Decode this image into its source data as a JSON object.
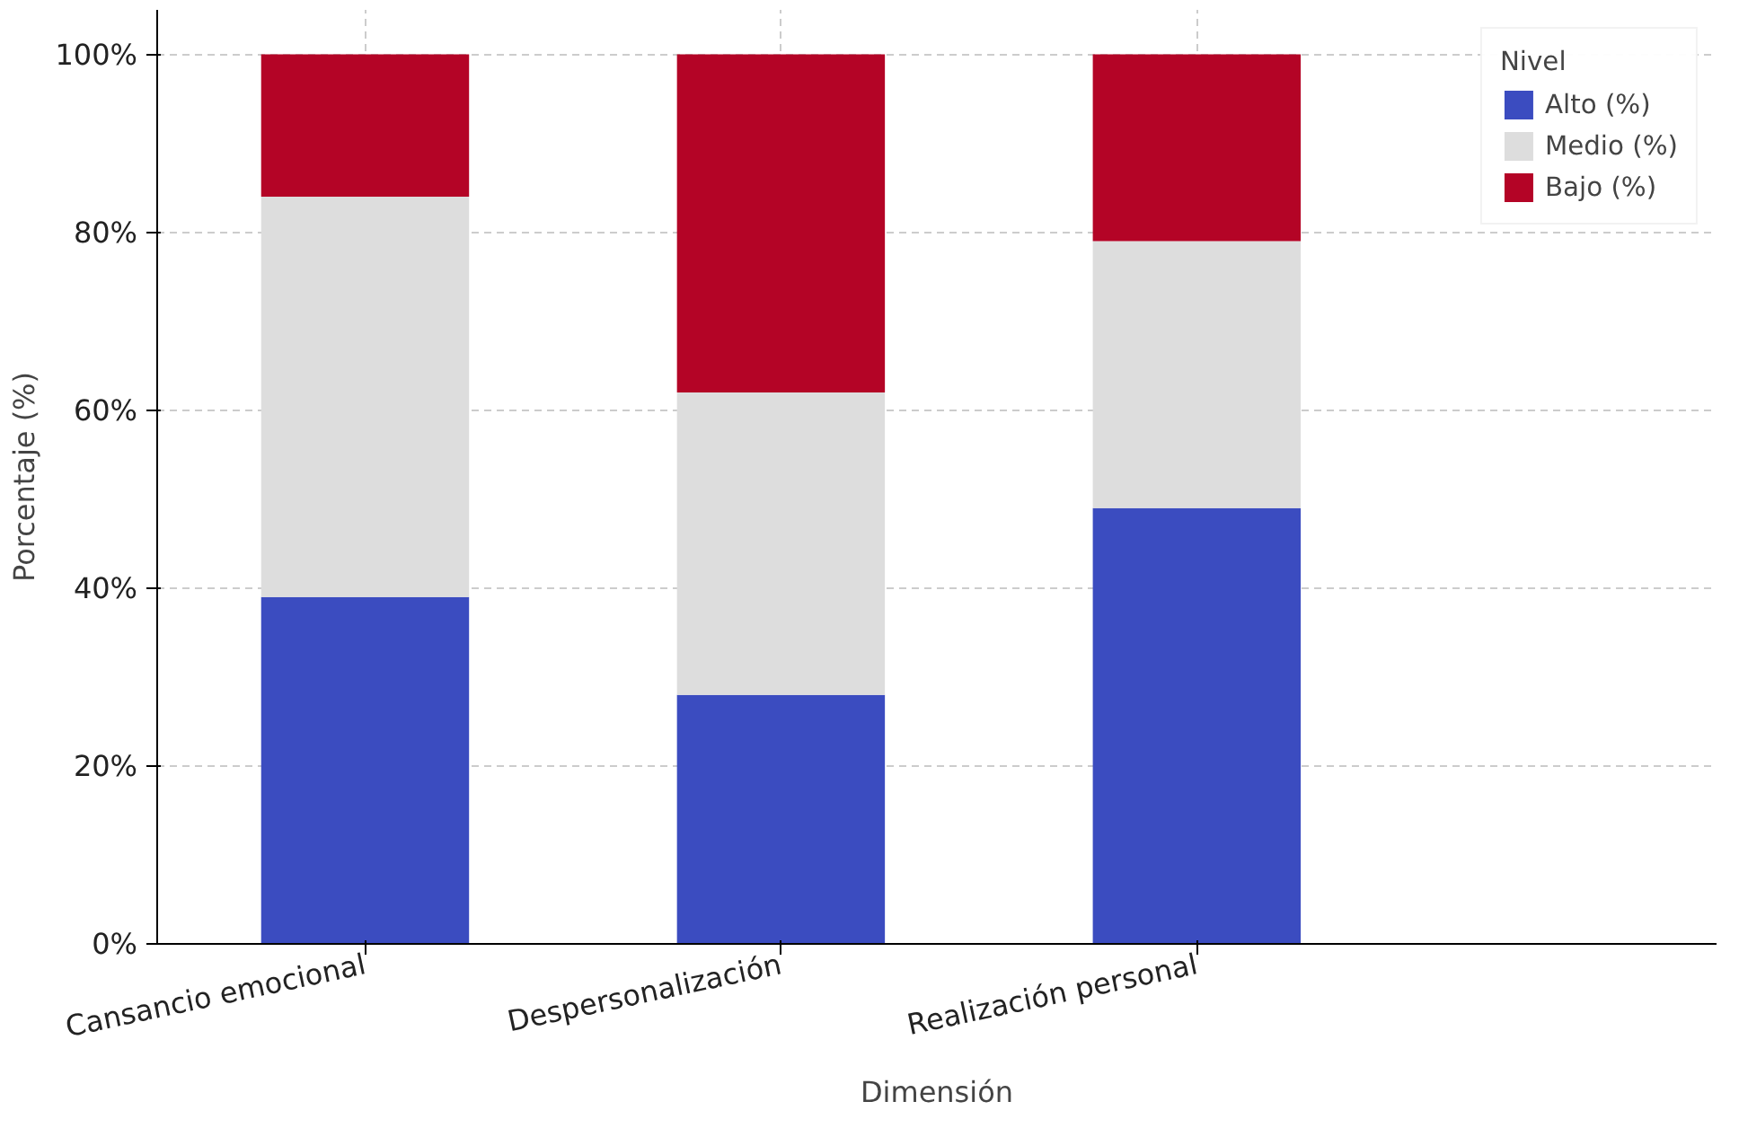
{
  "chart_data": {
    "type": "bar",
    "stacked": true,
    "xlabel": "Dimensión",
    "ylabel": "Porcentaje (%)",
    "legend_title": "Nivel",
    "categories": [
      "Cansancio emocional",
      "Despersonalización",
      "Realización personal"
    ],
    "series": [
      {
        "name": "Alto (%)",
        "color": "#3b4cc0",
        "values": [
          39,
          28,
          49
        ]
      },
      {
        "name": "Medio (%)",
        "color": "#dddddd",
        "values": [
          45,
          34,
          30
        ]
      },
      {
        "name": "Bajo (%)",
        "color": "#b40426",
        "values": [
          16,
          38,
          21
        ]
      }
    ],
    "ylim": [
      0,
      105
    ],
    "yticks": [
      {
        "value": 0,
        "label": "0%"
      },
      {
        "value": 20,
        "label": "20%"
      },
      {
        "value": 40,
        "label": "40%"
      },
      {
        "value": 60,
        "label": "60%"
      },
      {
        "value": 80,
        "label": "80%"
      },
      {
        "value": 100,
        "label": "100%"
      }
    ],
    "grid": true,
    "legend": "top right"
  }
}
